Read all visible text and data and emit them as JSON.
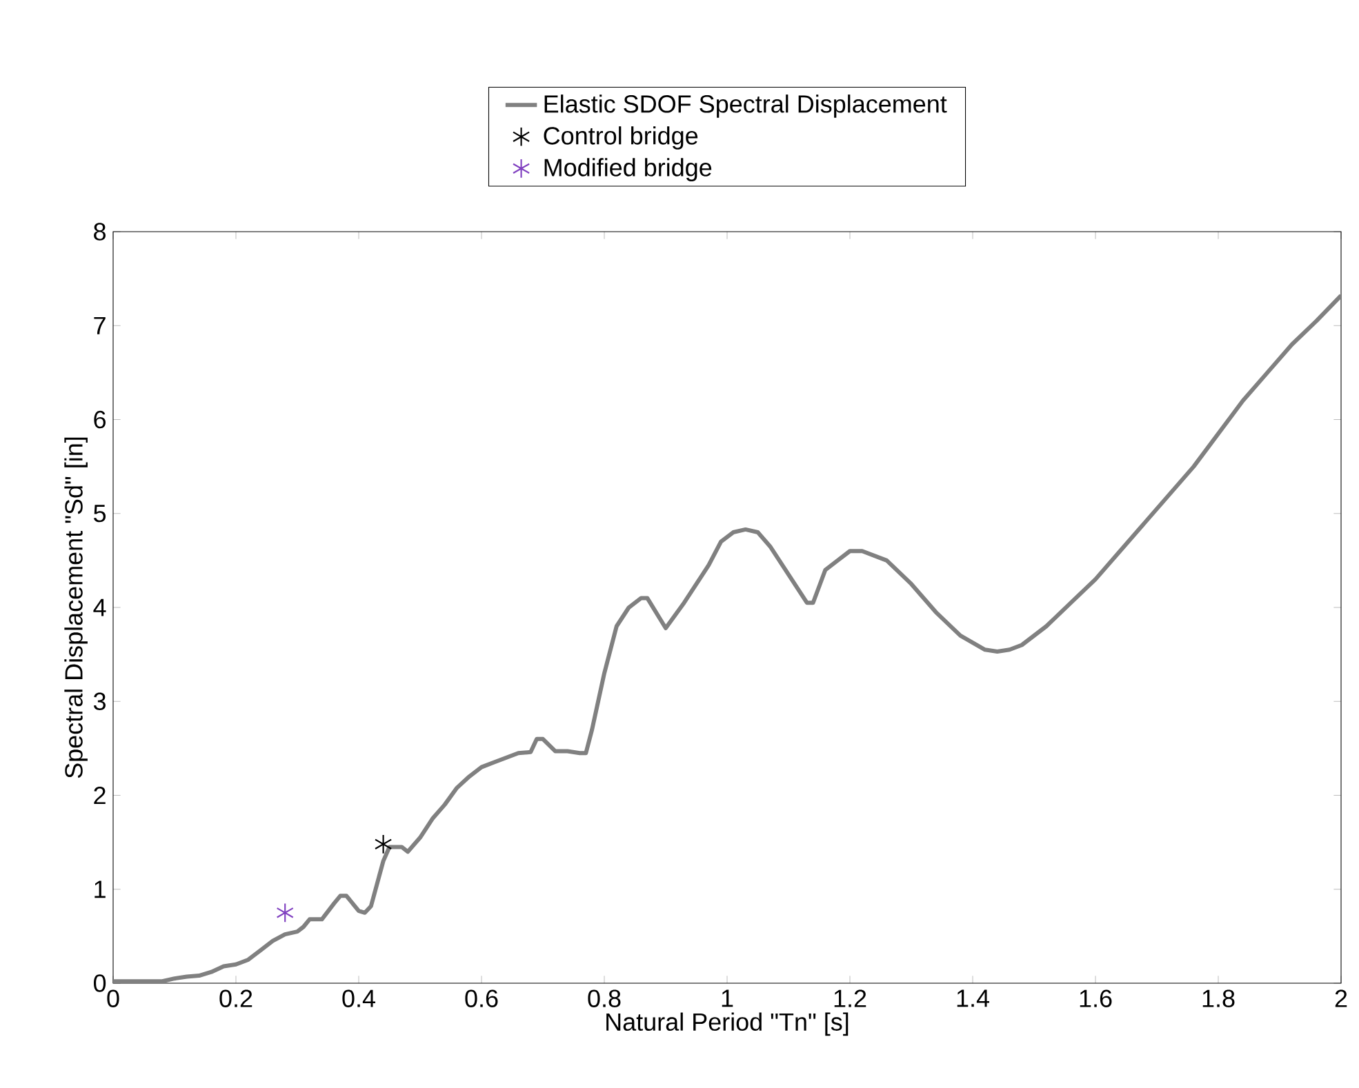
{
  "chart_data": {
    "type": "line",
    "xlabel": "Natural Period \"Tn\" [s]",
    "ylabel": "Spectral Displacement \"Sd\" [in]",
    "xlim": [
      0,
      2
    ],
    "ylim": [
      0,
      8
    ],
    "xticks": [
      0,
      0.2,
      0.4,
      0.6,
      0.8,
      1,
      1.2,
      1.4,
      1.6,
      1.8,
      2
    ],
    "yticks": [
      0,
      1,
      2,
      3,
      4,
      5,
      6,
      7,
      8
    ],
    "grid": false,
    "legend": "top",
    "series": [
      {
        "name": "Elastic SDOF Spectral Displacement",
        "color": "#808080",
        "marker": "none",
        "line_style": "solid",
        "x": [
          0,
          0.08,
          0.1,
          0.12,
          0.14,
          0.16,
          0.18,
          0.2,
          0.22,
          0.24,
          0.26,
          0.28,
          0.3,
          0.31,
          0.32,
          0.34,
          0.36,
          0.37,
          0.38,
          0.4,
          0.41,
          0.42,
          0.44,
          0.45,
          0.47,
          0.48,
          0.5,
          0.52,
          0.54,
          0.56,
          0.58,
          0.6,
          0.62,
          0.64,
          0.66,
          0.68,
          0.69,
          0.7,
          0.72,
          0.74,
          0.76,
          0.77,
          0.78,
          0.8,
          0.82,
          0.84,
          0.86,
          0.87,
          0.9,
          0.93,
          0.95,
          0.97,
          0.99,
          1.01,
          1.03,
          1.05,
          1.07,
          1.09,
          1.11,
          1.13,
          1.14,
          1.16,
          1.18,
          1.2,
          1.22,
          1.26,
          1.3,
          1.34,
          1.38,
          1.42,
          1.44,
          1.46,
          1.48,
          1.52,
          1.56,
          1.6,
          1.64,
          1.68,
          1.72,
          1.76,
          1.8,
          1.84,
          1.88,
          1.92,
          1.96,
          2.0
        ],
        "values": [
          0.02,
          0.02,
          0.05,
          0.07,
          0.08,
          0.12,
          0.18,
          0.2,
          0.25,
          0.35,
          0.45,
          0.52,
          0.55,
          0.6,
          0.68,
          0.68,
          0.85,
          0.93,
          0.93,
          0.77,
          0.75,
          0.82,
          1.3,
          1.45,
          1.45,
          1.4,
          1.55,
          1.75,
          1.9,
          2.08,
          2.2,
          2.3,
          2.35,
          2.4,
          2.45,
          2.46,
          2.6,
          2.6,
          2.47,
          2.47,
          2.45,
          2.45,
          2.7,
          3.3,
          3.8,
          4.0,
          4.1,
          4.1,
          3.78,
          4.05,
          4.25,
          4.45,
          4.7,
          4.8,
          4.83,
          4.8,
          4.65,
          4.45,
          4.25,
          4.05,
          4.05,
          4.4,
          4.5,
          4.6,
          4.6,
          4.5,
          4.25,
          3.95,
          3.7,
          3.55,
          3.53,
          3.55,
          3.6,
          3.8,
          4.05,
          4.3,
          4.6,
          4.9,
          5.2,
          5.5,
          5.85,
          6.2,
          6.5,
          6.8,
          7.05,
          7.32
        ]
      },
      {
        "name": "Control bridge",
        "type": "scatter",
        "color": "#000000",
        "marker": "cross",
        "x": [
          0.44
        ],
        "values": [
          1.48
        ]
      },
      {
        "name": "Modified bridge",
        "type": "scatter",
        "color": "#8040c0",
        "marker": "cross",
        "x": [
          0.28
        ],
        "values": [
          0.75
        ]
      }
    ]
  }
}
